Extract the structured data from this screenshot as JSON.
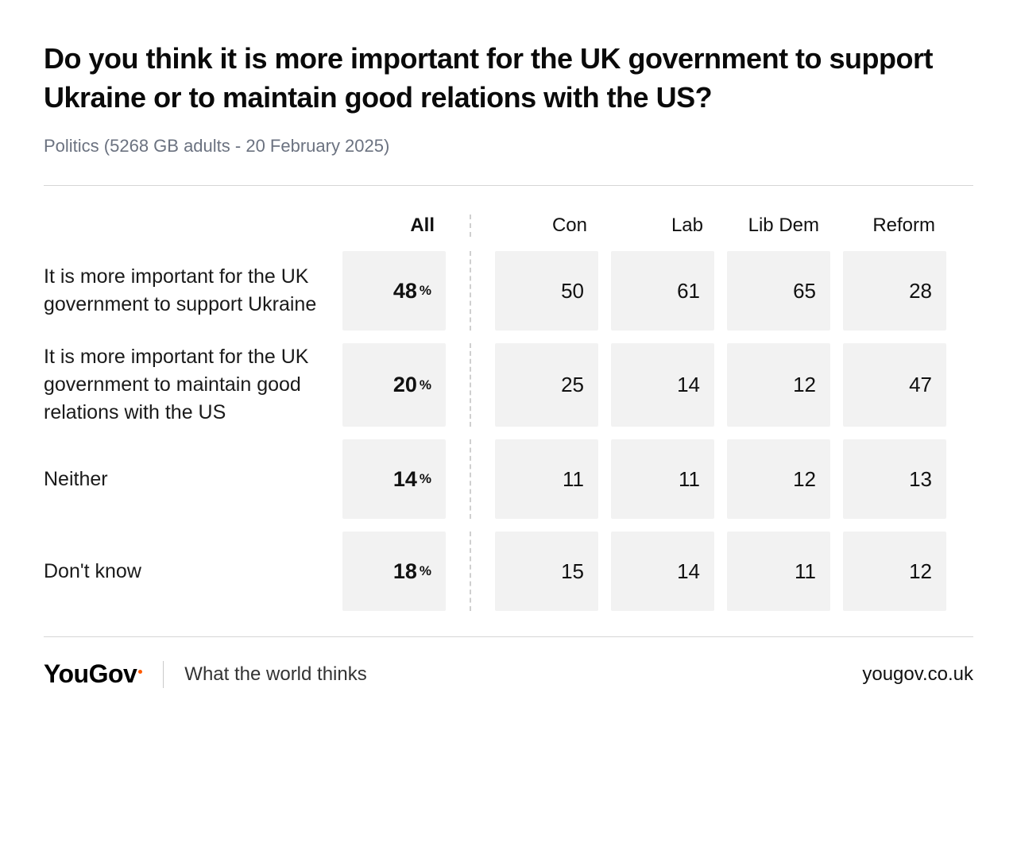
{
  "header": {
    "title": "Do you think it is more important for the UK government to support Ukraine or to maintain good relations with the US?",
    "subtitle": "Politics (5268 GB adults - 20 February 2025)"
  },
  "table": {
    "type": "table",
    "background_color": "#ffffff",
    "cell_background": "#f2f2f2",
    "divider_color": "#cfcfcf",
    "text_color": "#111111",
    "label_fontsize": 25,
    "header_fontsize": 24,
    "value_fontsize": 26,
    "all_value_fontsize": 27,
    "columns": [
      {
        "key": "all",
        "label": "All",
        "bold": true
      },
      {
        "key": "con",
        "label": "Con",
        "bold": false
      },
      {
        "key": "lab",
        "label": "Lab",
        "bold": false
      },
      {
        "key": "libdem",
        "label": "Lib Dem",
        "bold": false
      },
      {
        "key": "reform",
        "label": "Reform",
        "bold": false
      }
    ],
    "rows": [
      {
        "label": "It is more important for the UK government to support Ukraine",
        "all": 48,
        "con": 50,
        "lab": 61,
        "libdem": 65,
        "reform": 28
      },
      {
        "label": "It is more important for the UK government to maintain good relations with the US",
        "all": 20,
        "con": 25,
        "lab": 14,
        "libdem": 12,
        "reform": 47
      },
      {
        "label": "Neither",
        "all": 14,
        "con": 11,
        "lab": 11,
        "libdem": 12,
        "reform": 13
      },
      {
        "label": "Don't know",
        "all": 18,
        "con": 15,
        "lab": 14,
        "libdem": 11,
        "reform": 12
      }
    ],
    "all_suffix": "%"
  },
  "footer": {
    "brand": "YouGov",
    "brand_accent_color": "#ff5a00",
    "tagline": "What the world thinks",
    "site": "yougov.co.uk"
  }
}
